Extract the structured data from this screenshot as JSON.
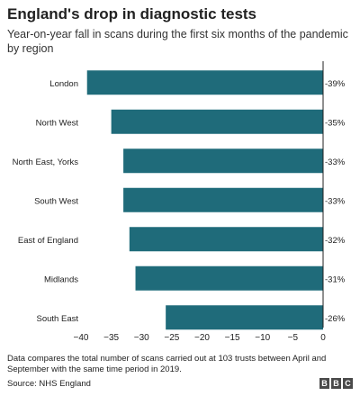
{
  "title": "England's drop in diagnostic tests",
  "subtitle": "Year-on-year fall in scans during the first six months of the pandemic by region",
  "footnote": "Data compares the total number of scans carried out at 103 trusts between April and September with the same time period in 2019.",
  "source": "Source: NHS England",
  "logo": [
    "B",
    "B",
    "C"
  ],
  "colors": {
    "bar": "#1f6b7a",
    "text": "#222222"
  },
  "chart_data": {
    "type": "bar",
    "orientation": "horizontal",
    "categories": [
      "London",
      "North West",
      "North East, Yorks",
      "South West",
      "East of England",
      "Midlands",
      "South East"
    ],
    "values": [
      -39,
      -35,
      -33,
      -33,
      -32,
      -31,
      -26
    ],
    "value_labels": [
      "-39%",
      "-35%",
      "-33%",
      "-33%",
      "-32%",
      "-31%",
      "-26%"
    ],
    "xlim": [
      -40,
      0
    ],
    "xticks": [
      -40,
      -35,
      -30,
      -25,
      -20,
      -15,
      -10,
      -5,
      0
    ],
    "xtick_labels": [
      "−40",
      "−35",
      "−30",
      "−25",
      "−20",
      "−15",
      "−10",
      "−5",
      "0"
    ],
    "title": "England's drop in diagnostic tests",
    "xlabel": "",
    "ylabel": "",
    "grid": false,
    "legend": "none"
  }
}
